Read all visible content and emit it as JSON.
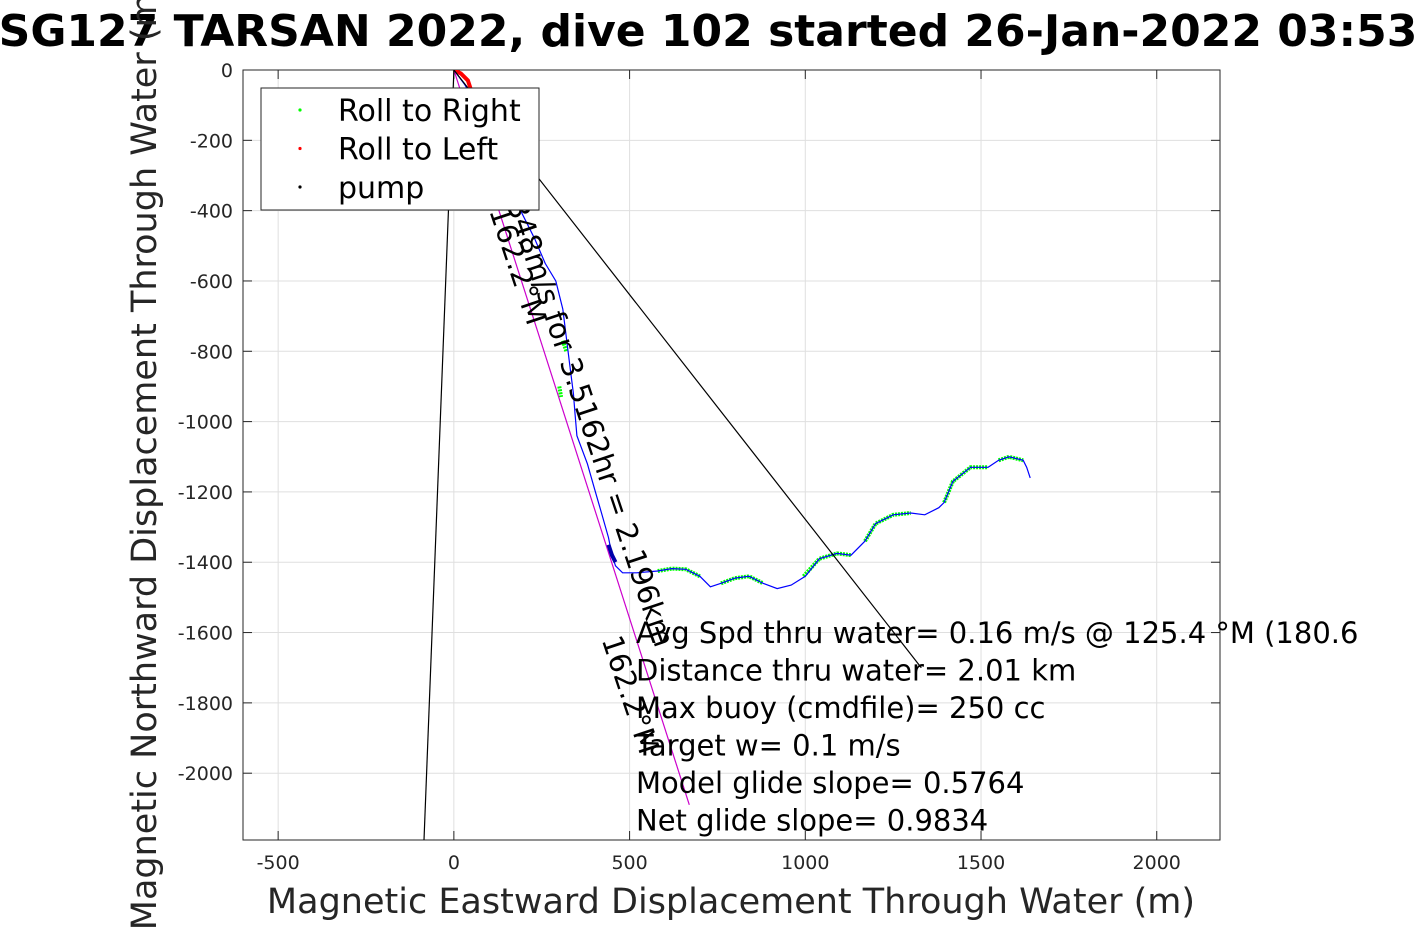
{
  "chart_data": {
    "type": "line",
    "title": "SG127 TARSAN 2022, dive 102 started 26-Jan-2022 03:53",
    "xlabel": "Magnetic Eastward Displacement Through Water (m)",
    "ylabel": "Magnetic Northward Displacement Through Water (m)",
    "xlim": [
      -600,
      2180
    ],
    "ylim": [
      -2190,
      0
    ],
    "xticks": [
      -500,
      0,
      500,
      1000,
      1500,
      2000
    ],
    "yticks": [
      0,
      -200,
      -400,
      -600,
      -800,
      -1000,
      -1200,
      -1400,
      -1600,
      -1800,
      -2000
    ],
    "grid": true,
    "legend_position": "top-left",
    "legend": [
      {
        "label": "Roll to Right",
        "color": "#00ff00"
      },
      {
        "label": "Roll to Left",
        "color": "#ff0000"
      },
      {
        "label": "pump",
        "color": "#000000"
      }
    ],
    "series": [
      {
        "name": "Roll to Right",
        "color": "#00ff00",
        "kind": "segments",
        "segments": [
          [
            [
              580,
              -1425
            ],
            [
              620,
              -1418
            ],
            [
              660,
              -1420
            ],
            [
              700,
              -1440
            ]
          ],
          [
            [
              760,
              -1460
            ],
            [
              800,
              -1445
            ],
            [
              840,
              -1440
            ],
            [
              880,
              -1460
            ]
          ],
          [
            [
              995,
              -1440
            ],
            [
              1040,
              -1390
            ],
            [
              1090,
              -1375
            ],
            [
              1130,
              -1380
            ]
          ],
          [
            [
              1170,
              -1340
            ],
            [
              1200,
              -1290
            ],
            [
              1250,
              -1265
            ],
            [
              1300,
              -1260
            ]
          ],
          [
            [
              1395,
              -1230
            ],
            [
              1420,
              -1170
            ],
            [
              1470,
              -1130
            ],
            [
              1520,
              -1130
            ]
          ],
          [
            [
              1550,
              -1110
            ],
            [
              1580,
              -1100
            ],
            [
              1620,
              -1110
            ]
          ],
          [
            [
              310,
              -770
            ],
            [
              320,
              -800
            ]
          ],
          [
            [
              300,
              -900
            ],
            [
              305,
              -930
            ]
          ]
        ]
      },
      {
        "name": "Roll to Left",
        "color": "#ff0000",
        "kind": "segments",
        "segments": [
          [
            [
              0,
              0
            ],
            [
              20,
              -10
            ],
            [
              40,
              -30
            ],
            [
              50,
              -60
            ]
          ]
        ]
      },
      {
        "name": "pump",
        "color": "#000000",
        "kind": "segments",
        "segments": []
      },
      {
        "name": "track",
        "color": "#0000ff",
        "kind": "line",
        "x": [
          0,
          30,
          60,
          90,
          130,
          180,
          230,
          260,
          290,
          310,
          320,
          330,
          340,
          345,
          350,
          380,
          400,
          420,
          440,
          450,
          460,
          480,
          520,
          580,
          620,
          660,
          700,
          730,
          760,
          800,
          840,
          880,
          920,
          960,
          1000,
          1040,
          1090,
          1130,
          1170,
          1200,
          1250,
          1300,
          1340,
          1380,
          1395,
          1420,
          1470,
          1520,
          1550,
          1580,
          1620,
          1630,
          1640
        ],
        "y": [
          0,
          -40,
          -90,
          -160,
          -260,
          -380,
          -480,
          -550,
          -600,
          -680,
          -760,
          -840,
          -920,
          -980,
          -1040,
          -1120,
          -1190,
          -1260,
          -1330,
          -1380,
          -1410,
          -1430,
          -1430,
          -1425,
          -1418,
          -1420,
          -1440,
          -1470,
          -1460,
          -1445,
          -1440,
          -1460,
          -1475,
          -1465,
          -1440,
          -1390,
          -1375,
          -1380,
          -1340,
          -1290,
          -1265,
          -1260,
          -1265,
          -1245,
          -1230,
          -1170,
          -1130,
          -1130,
          -1110,
          -1100,
          -1110,
          -1130,
          -1160
        ]
      },
      {
        "name": "heading-line",
        "color": "#cc00cc",
        "kind": "line",
        "x": [
          0,
          670
        ],
        "y": [
          0,
          -2090
        ]
      },
      {
        "name": "pointer-lines",
        "color": "#000000",
        "kind": "segments",
        "segments": [
          [
            [
              0,
              0
            ],
            [
              1330,
              -1700
            ]
          ],
          [
            [
              0,
              0
            ],
            [
              -85,
              -2190
            ]
          ]
        ]
      },
      {
        "name": "blue-clump",
        "color": "#0000aa",
        "kind": "segments",
        "segments": [
          [
            [
              440,
              -1350
            ],
            [
              450,
              -1380
            ],
            [
              460,
              -1400
            ]
          ]
        ]
      }
    ],
    "rotated_labels": [
      {
        "text": "348m/s for 3.5162hr = 2.196km",
        "x": 150,
        "y": -380,
        "angle": 71.5
      },
      {
        "text": "162.2°M",
        "x": 100,
        "y": -400,
        "angle": 71.5
      },
      {
        "text": "162.2°M",
        "x": 420,
        "y": -1620,
        "angle": 71.5
      }
    ],
    "annotations": [
      "Avg Spd thru water=  0.16 m/s @ 125.4 °M (180.6",
      "Distance thru water=  2.01 km",
      "Max buoy (cmdfile)= 250 cc",
      "Target w= 0.1 m/s",
      "Model glide slope= 0.5764",
      "Net glide slope= 0.9834"
    ]
  }
}
